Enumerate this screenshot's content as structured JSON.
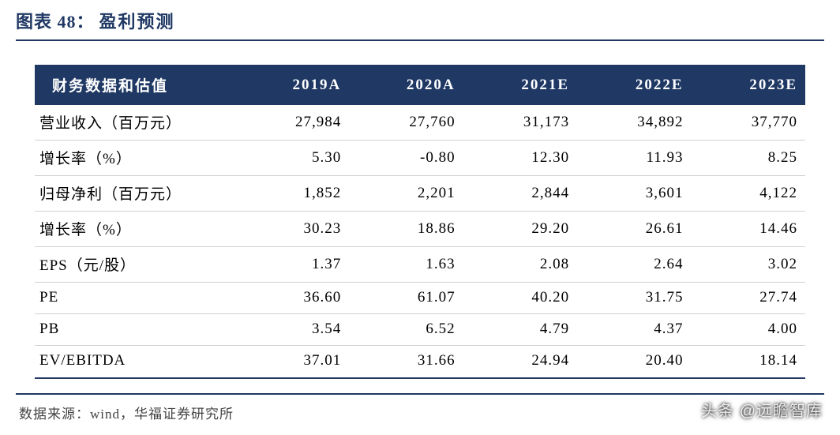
{
  "header": {
    "label": "图表 48：",
    "title": "盈利预测"
  },
  "table": {
    "columns": [
      "财务数据和估值",
      "2019A",
      "2020A",
      "2021E",
      "2022E",
      "2023E"
    ],
    "rows": [
      {
        "label": "营业收入（百万元）",
        "c1": "27,984",
        "c2": "27,760",
        "c3": "31,173",
        "c4": "34,892",
        "c5": "37,770"
      },
      {
        "label": "增长率（%）",
        "c1": "5.30",
        "c2": "-0.80",
        "c3": "12.30",
        "c4": "11.93",
        "c5": "8.25"
      },
      {
        "label": "归母净利（百万元）",
        "c1": "1,852",
        "c2": "2,201",
        "c3": "2,844",
        "c4": "3,601",
        "c5": "4,122"
      },
      {
        "label": "增长率（%）",
        "c1": "30.23",
        "c2": "18.86",
        "c3": "29.20",
        "c4": "26.61",
        "c5": "14.46"
      },
      {
        "label": "EPS（元/股）",
        "c1": "1.37",
        "c2": "1.63",
        "c3": "2.08",
        "c4": "2.64",
        "c5": "3.02"
      },
      {
        "label": "PE",
        "c1": "36.60",
        "c2": "61.07",
        "c3": "40.20",
        "c4": "31.75",
        "c5": "27.74"
      },
      {
        "label": "PB",
        "c1": "3.54",
        "c2": "6.52",
        "c3": "4.79",
        "c4": "4.37",
        "c5": "4.00"
      },
      {
        "label": "EV/EBITDA",
        "c1": "37.01",
        "c2": "31.66",
        "c3": "24.94",
        "c4": "20.40",
        "c5": "18.14"
      }
    ]
  },
  "footer": {
    "source": "数据来源：wind，华福证券研究所"
  },
  "watermark": "头条 @远瞻智库",
  "style": {
    "type": "table",
    "header_bg": "#1f3864",
    "header_text": "#ffffff",
    "title_color": "#1f3864",
    "body_text": "#000000",
    "rule_color": "#1f3864",
    "row_divider": "#d0d0d0",
    "background": "#ffffff",
    "title_fontsize": 22,
    "header_fontsize": 19,
    "cell_fontsize": 19,
    "source_fontsize": 17,
    "col_align": [
      "left",
      "right",
      "right",
      "right",
      "right",
      "right"
    ]
  }
}
